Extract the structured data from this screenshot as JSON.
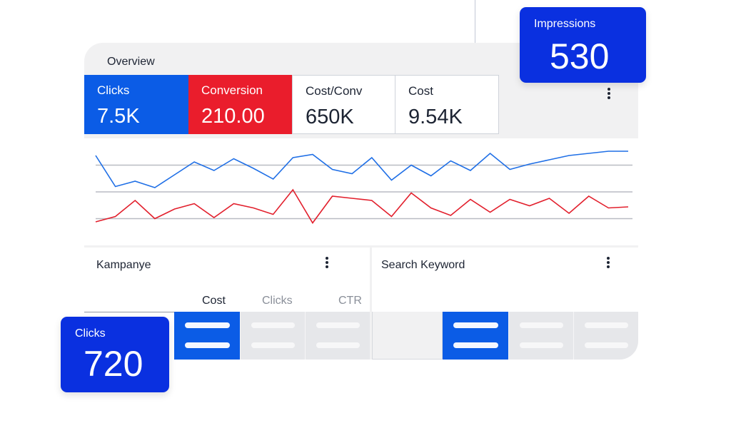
{
  "overview": {
    "title": "Overview",
    "kpis": [
      {
        "label": "Clicks",
        "value": "7.5K",
        "color": "#0b5ce6"
      },
      {
        "label": "Conversion",
        "value": "210.00",
        "color": "#ea1d2c"
      },
      {
        "label": "Cost/Conv",
        "value": "650K"
      },
      {
        "label": "Cost",
        "value": "9.54K"
      }
    ]
  },
  "chart_data": {
    "type": "line",
    "grid": true,
    "x": [
      0,
      1,
      2,
      3,
      4,
      5,
      6,
      7,
      8,
      9,
      10,
      11,
      12,
      13,
      14,
      15,
      16,
      17,
      18,
      19,
      20,
      21,
      22,
      23,
      24,
      25,
      26,
      27
    ],
    "series": [
      {
        "color": "#1f6fe6",
        "values": [
          84,
          55,
          60,
          54,
          66,
          78,
          70,
          81,
          72,
          62,
          82,
          85,
          71,
          67,
          82,
          61,
          75,
          65,
          79,
          70,
          86,
          71,
          76,
          80,
          84,
          86,
          88,
          88
        ]
      },
      {
        "color": "#e21f2c",
        "values": [
          22,
          27,
          42,
          25,
          34,
          39,
          26,
          39,
          35,
          29,
          52,
          21,
          46,
          44,
          42,
          27,
          49,
          35,
          28,
          43,
          31,
          43,
          37,
          44,
          30,
          46,
          35,
          36
        ]
      }
    ],
    "ylim": [
      0,
      100
    ]
  },
  "campaign_panel": {
    "title": "Kampanye",
    "columns": [
      "Cost",
      "Clicks",
      "CTR"
    ]
  },
  "keyword_panel": {
    "title": "Search Keyword"
  },
  "badges": {
    "impressions": {
      "label": "Impressions",
      "value": "530"
    },
    "clicks": {
      "label": "Clicks",
      "value": "720"
    }
  },
  "colors": {
    "accent_blue": "#0b5ce6",
    "badge_blue": "#0a30e0",
    "accent_red": "#ea1d2c"
  }
}
